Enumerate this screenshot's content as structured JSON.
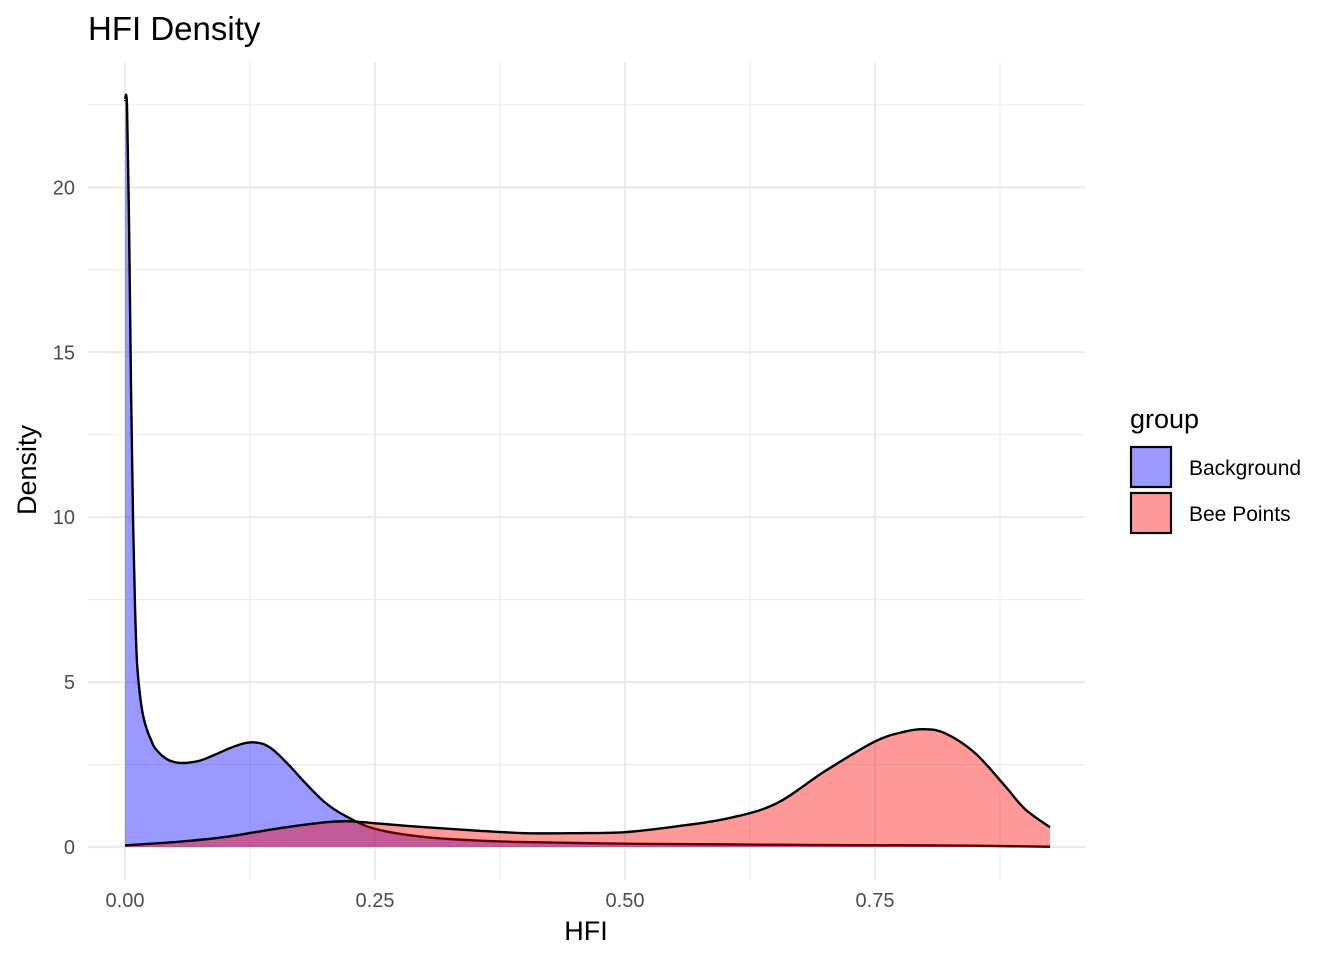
{
  "chart_data": {
    "type": "area",
    "title": "HFI Density",
    "xlabel": "HFI",
    "ylabel": "Density",
    "xlim": [
      -0.037,
      0.96
    ],
    "ylim": [
      -1.0,
      23.8
    ],
    "x_ticks": [
      0.0,
      0.25,
      0.5,
      0.75
    ],
    "x_tick_labels": [
      "0.00",
      "0.25",
      "0.50",
      "0.75"
    ],
    "y_ticks": [
      0,
      5,
      10,
      15,
      20
    ],
    "y_tick_labels": [
      "0",
      "5",
      "10",
      "15",
      "20"
    ],
    "grid": true,
    "legend": {
      "title": "group",
      "placement": "right"
    },
    "series": [
      {
        "name": "Background",
        "color": "#0000ff",
        "alpha": 0.4,
        "x": [
          0.0,
          0.002,
          0.004,
          0.006,
          0.008,
          0.01,
          0.012,
          0.015,
          0.018,
          0.022,
          0.026,
          0.03,
          0.04,
          0.05,
          0.06,
          0.075,
          0.09,
          0.105,
          0.12,
          0.13,
          0.14,
          0.15,
          0.165,
          0.18,
          0.2,
          0.22,
          0.25,
          0.3,
          0.35,
          0.4,
          0.5,
          0.6,
          0.7,
          0.8,
          0.85,
          0.9,
          0.925
        ],
        "y": [
          22.65,
          22.5,
          19.0,
          14.0,
          10.0,
          7.3,
          5.6,
          4.6,
          4.0,
          3.55,
          3.25,
          3.0,
          2.7,
          2.57,
          2.55,
          2.62,
          2.8,
          3.0,
          3.15,
          3.17,
          3.1,
          2.9,
          2.45,
          1.95,
          1.35,
          0.95,
          0.55,
          0.3,
          0.2,
          0.15,
          0.1,
          0.08,
          0.06,
          0.05,
          0.04,
          0.02,
          0.01
        ]
      },
      {
        "name": "Bee Points",
        "color": "#ff0000",
        "alpha": 0.4,
        "x": [
          0.0,
          0.05,
          0.1,
          0.15,
          0.2,
          0.225,
          0.25,
          0.3,
          0.35,
          0.4,
          0.45,
          0.5,
          0.55,
          0.6,
          0.65,
          0.7,
          0.75,
          0.78,
          0.8,
          0.82,
          0.85,
          0.88,
          0.9,
          0.925
        ],
        "y": [
          0.05,
          0.15,
          0.3,
          0.55,
          0.75,
          0.78,
          0.72,
          0.6,
          0.5,
          0.42,
          0.42,
          0.45,
          0.62,
          0.85,
          1.3,
          2.3,
          3.2,
          3.5,
          3.57,
          3.45,
          2.85,
          1.85,
          1.15,
          0.6
        ]
      }
    ]
  }
}
